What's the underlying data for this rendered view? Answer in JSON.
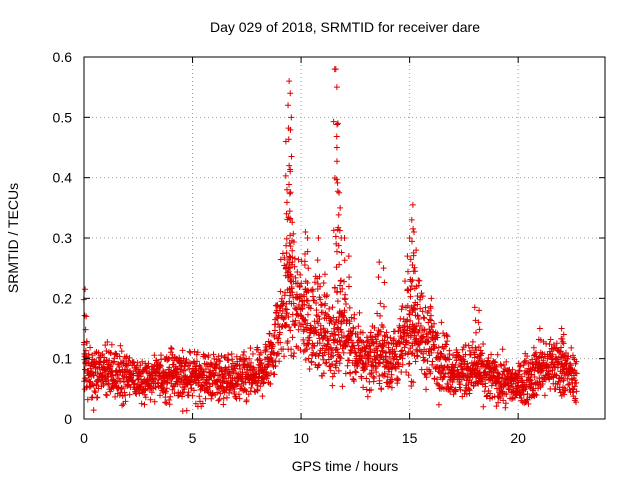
{
  "chart_data": {
    "type": "scatter",
    "title": "Day 029 of 2018, SRMTID for receiver dare",
    "xlabel": "GPS time / hours",
    "ylabel": "SRMTID / TECUs",
    "xlim": [
      0,
      24
    ],
    "ylim": [
      0,
      0.6
    ],
    "x_ticks": [
      0,
      5,
      10,
      15,
      20
    ],
    "x_tick_labels": [
      "0",
      "5",
      "10",
      "15",
      "20"
    ],
    "y_ticks": [
      0,
      0.1,
      0.2,
      0.3,
      0.4,
      0.5,
      0.6
    ],
    "y_tick_labels": [
      "0",
      "0.1",
      "0.2",
      "0.3",
      "0.4",
      "0.5",
      "0.6"
    ],
    "grid": true,
    "marker": "+",
    "series_color": "#e00000",
    "trend": [
      {
        "x": 0.0,
        "y": 0.085
      },
      {
        "x": 0.5,
        "y": 0.07
      },
      {
        "x": 1.0,
        "y": 0.075
      },
      {
        "x": 2.0,
        "y": 0.07
      },
      {
        "x": 3.0,
        "y": 0.065
      },
      {
        "x": 4.0,
        "y": 0.075
      },
      {
        "x": 5.0,
        "y": 0.07
      },
      {
        "x": 6.0,
        "y": 0.07
      },
      {
        "x": 7.0,
        "y": 0.065
      },
      {
        "x": 8.0,
        "y": 0.07
      },
      {
        "x": 8.6,
        "y": 0.1
      },
      {
        "x": 9.0,
        "y": 0.17
      },
      {
        "x": 9.5,
        "y": 0.2
      },
      {
        "x": 10.0,
        "y": 0.18
      },
      {
        "x": 10.5,
        "y": 0.16
      },
      {
        "x": 11.0,
        "y": 0.14
      },
      {
        "x": 11.5,
        "y": 0.13
      },
      {
        "x": 12.0,
        "y": 0.14
      },
      {
        "x": 12.5,
        "y": 0.11
      },
      {
        "x": 13.0,
        "y": 0.1
      },
      {
        "x": 13.5,
        "y": 0.11
      },
      {
        "x": 14.0,
        "y": 0.1
      },
      {
        "x": 14.5,
        "y": 0.11
      },
      {
        "x": 15.0,
        "y": 0.15
      },
      {
        "x": 15.5,
        "y": 0.14
      },
      {
        "x": 16.0,
        "y": 0.12
      },
      {
        "x": 16.5,
        "y": 0.1
      },
      {
        "x": 17.0,
        "y": 0.08
      },
      {
        "x": 18.0,
        "y": 0.08
      },
      {
        "x": 19.0,
        "y": 0.065
      },
      {
        "x": 20.0,
        "y": 0.055
      },
      {
        "x": 20.5,
        "y": 0.07
      },
      {
        "x": 21.0,
        "y": 0.08
      },
      {
        "x": 21.5,
        "y": 0.09
      },
      {
        "x": 22.0,
        "y": 0.085
      },
      {
        "x": 22.7,
        "y": 0.065
      }
    ],
    "spikes": [
      {
        "x": 0.05,
        "y": 0.215
      },
      {
        "x": 0.1,
        "y": 0.17
      },
      {
        "x": 9.3,
        "y": 0.46
      },
      {
        "x": 9.4,
        "y": 0.52
      },
      {
        "x": 9.45,
        "y": 0.56
      },
      {
        "x": 9.5,
        "y": 0.54
      },
      {
        "x": 9.55,
        "y": 0.5
      },
      {
        "x": 9.45,
        "y": 0.42
      },
      {
        "x": 9.35,
        "y": 0.38
      },
      {
        "x": 9.5,
        "y": 0.33
      },
      {
        "x": 9.6,
        "y": 0.26
      },
      {
        "x": 10.2,
        "y": 0.31
      },
      {
        "x": 10.3,
        "y": 0.3
      },
      {
        "x": 10.8,
        "y": 0.3
      },
      {
        "x": 11.1,
        "y": 0.24
      },
      {
        "x": 11.55,
        "y": 0.58
      },
      {
        "x": 11.6,
        "y": 0.58
      },
      {
        "x": 11.65,
        "y": 0.55
      },
      {
        "x": 11.7,
        "y": 0.49
      },
      {
        "x": 11.65,
        "y": 0.45
      },
      {
        "x": 11.75,
        "y": 0.375
      },
      {
        "x": 11.8,
        "y": 0.35
      },
      {
        "x": 11.85,
        "y": 0.3
      },
      {
        "x": 12.0,
        "y": 0.3
      },
      {
        "x": 12.2,
        "y": 0.27
      },
      {
        "x": 13.6,
        "y": 0.26
      },
      {
        "x": 13.8,
        "y": 0.25
      },
      {
        "x": 14.9,
        "y": 0.27
      },
      {
        "x": 15.0,
        "y": 0.3
      },
      {
        "x": 15.1,
        "y": 0.33
      },
      {
        "x": 15.15,
        "y": 0.355
      },
      {
        "x": 15.2,
        "y": 0.31
      },
      {
        "x": 15.3,
        "y": 0.28
      },
      {
        "x": 15.4,
        "y": 0.23
      },
      {
        "x": 16.0,
        "y": 0.2
      },
      {
        "x": 18.0,
        "y": 0.185
      },
      {
        "x": 18.2,
        "y": 0.18
      },
      {
        "x": 21.0,
        "y": 0.15
      },
      {
        "x": 22.0,
        "y": 0.15
      },
      {
        "x": 22.1,
        "y": 0.14
      }
    ],
    "point_count": 2600,
    "seed": 29
  }
}
